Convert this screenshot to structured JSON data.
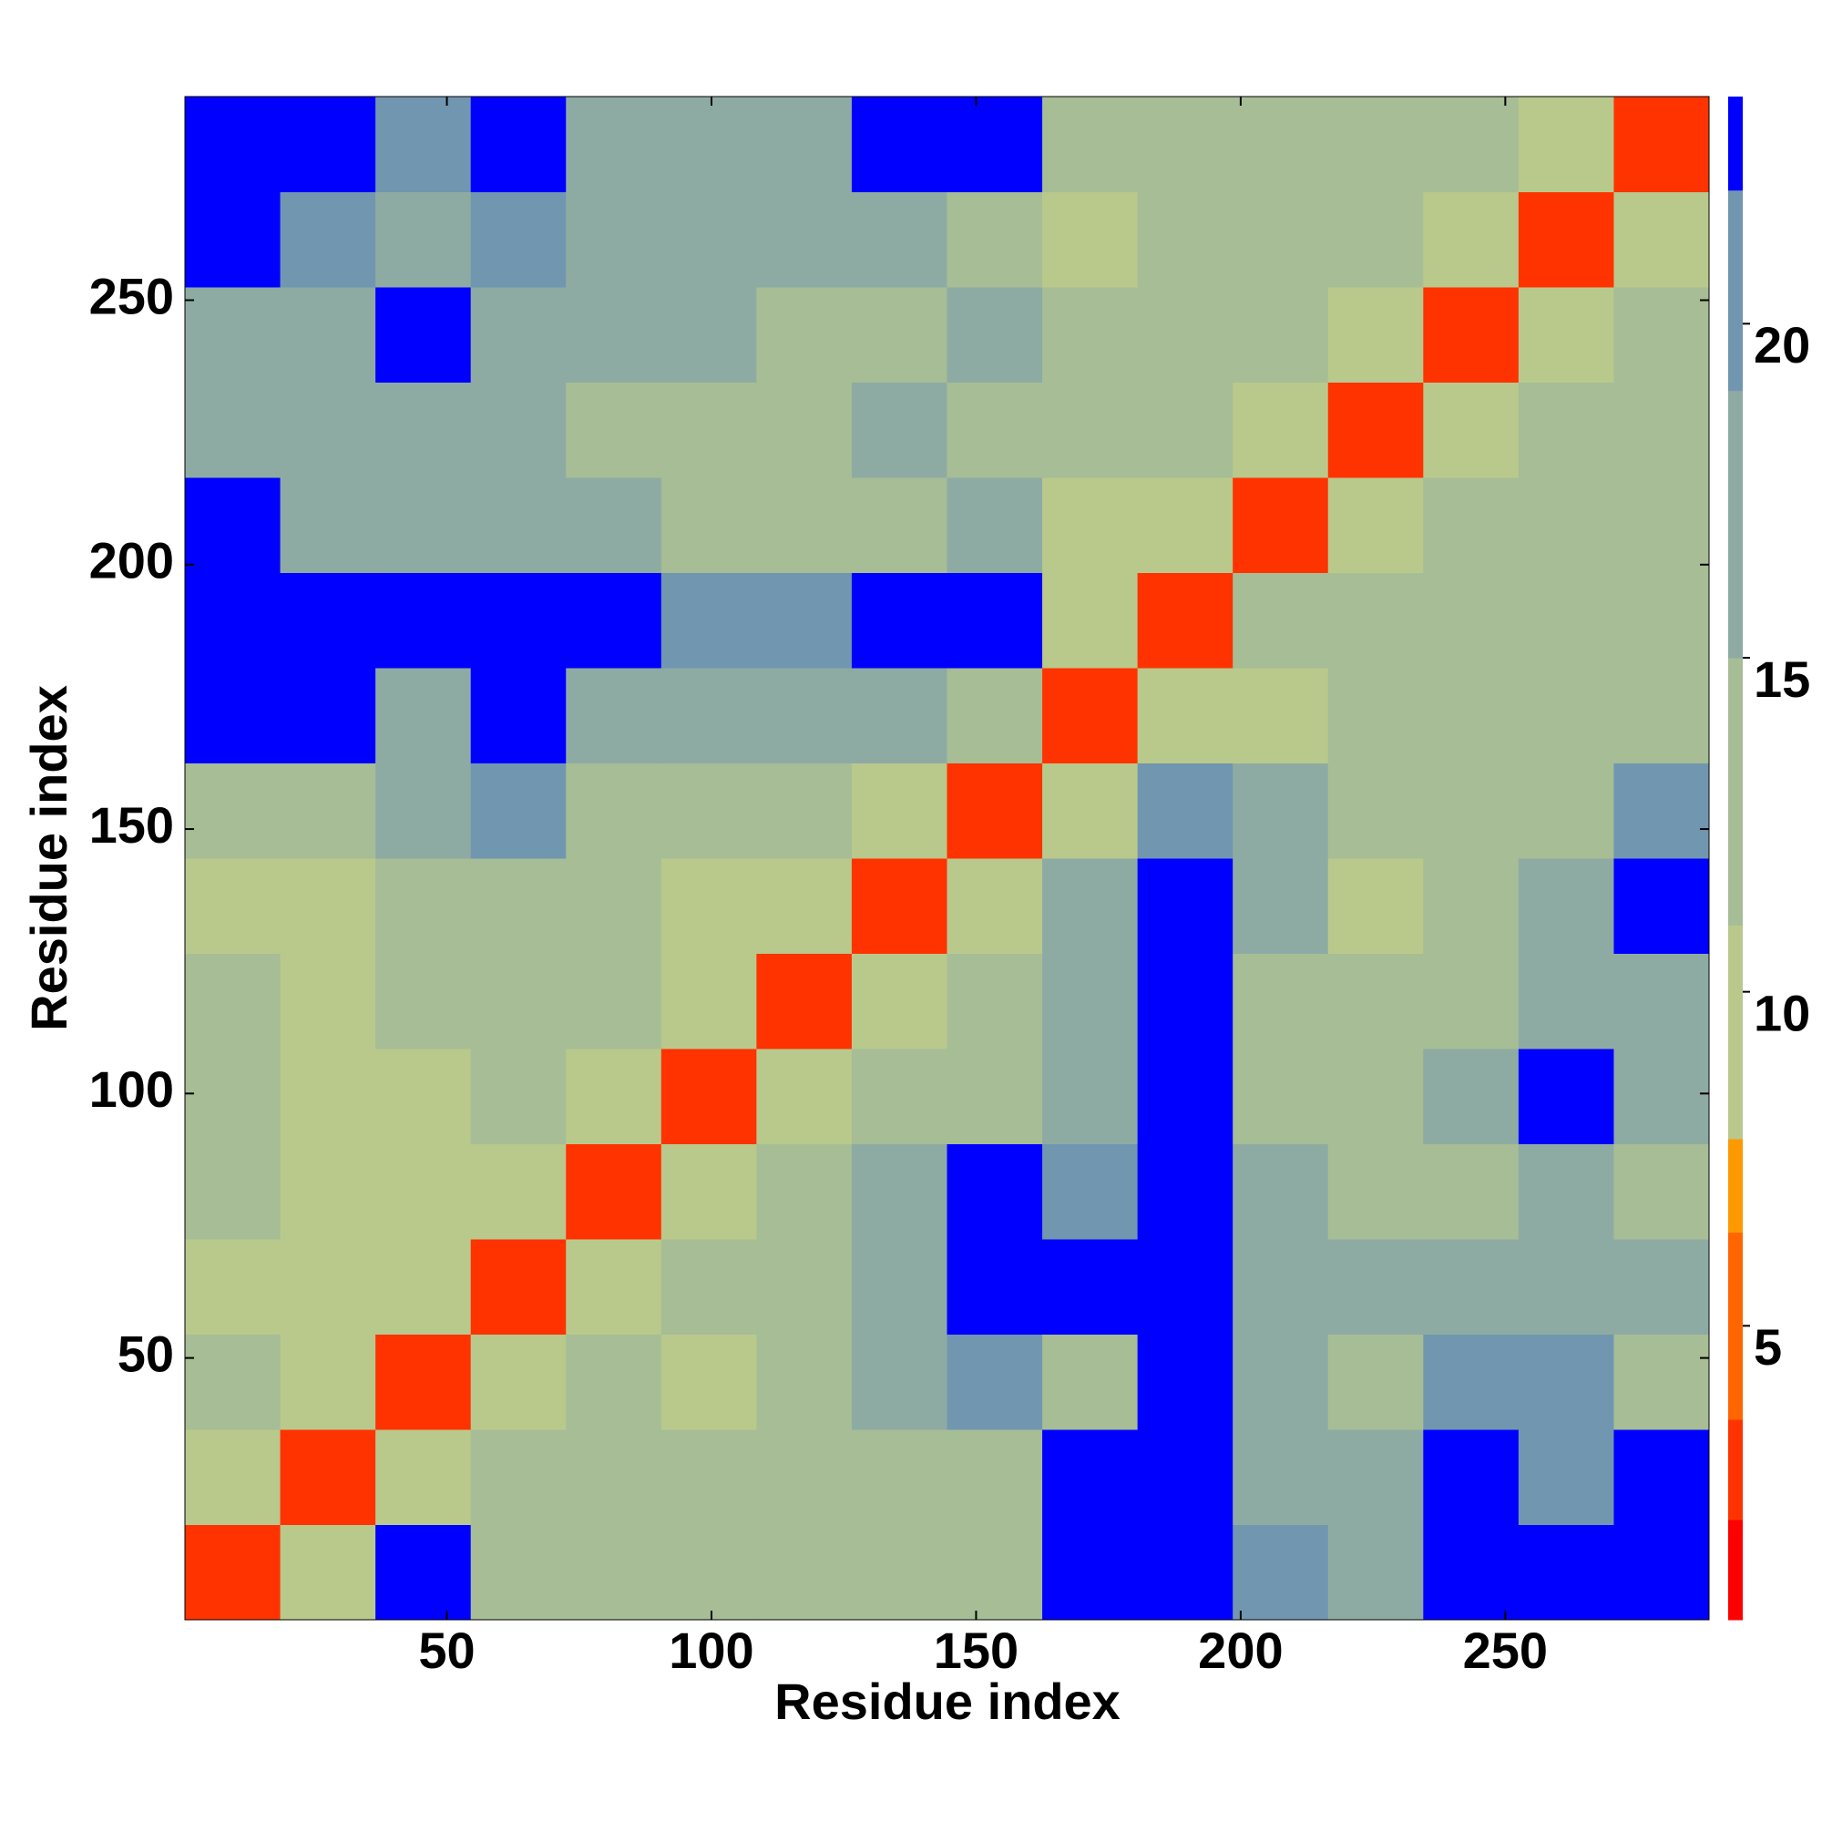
{
  "chart_data": {
    "type": "heatmap",
    "x_label": "Residue index",
    "y_label": "Residue index",
    "bins": [
      0.5,
      18.5,
      36.5,
      54.5,
      72.5,
      90.5,
      108.5,
      126.5,
      144.5,
      162.5,
      180.5,
      198.5,
      216.5,
      234.5,
      252.5,
      270.5,
      288.5
    ],
    "values": [
      [
        3,
        11,
        23,
        13,
        13,
        14,
        12,
        13,
        14,
        23,
        23,
        20,
        19,
        23,
        23,
        23
      ],
      [
        11,
        3,
        10,
        12,
        15,
        12,
        12,
        12,
        14,
        23,
        23,
        16,
        16,
        23,
        21,
        23
      ],
      [
        12,
        10,
        3,
        8,
        14,
        11,
        12,
        18,
        21,
        14,
        23,
        16,
        15,
        21,
        21,
        15
      ],
      [
        10,
        10,
        9,
        3,
        10,
        12,
        14,
        17,
        23,
        23,
        23,
        18,
        16,
        18,
        18,
        18
      ],
      [
        12,
        11,
        11,
        10,
        3,
        8,
        13,
        16,
        23,
        20,
        23,
        16,
        14,
        15,
        17,
        14
      ],
      [
        12,
        11,
        11,
        12,
        9,
        3,
        9,
        12,
        14,
        16,
        23,
        12,
        12,
        18,
        23,
        18
      ],
      [
        13,
        11,
        12,
        12,
        13,
        9,
        3,
        8,
        12,
        16,
        23,
        13,
        12,
        14,
        16,
        18
      ],
      [
        11,
        11,
        14,
        13,
        12,
        10,
        8,
        3,
        8,
        19,
        23,
        16,
        10,
        15,
        16,
        23
      ],
      [
        12,
        13,
        16,
        20,
        14,
        13,
        12,
        8,
        3,
        11,
        20,
        16,
        13,
        13,
        13,
        20
      ],
      [
        23,
        23,
        16,
        23,
        17,
        16,
        19,
        18,
        12,
        3,
        10,
        11,
        13,
        12,
        12,
        14
      ],
      [
        23,
        23,
        23,
        23,
        23,
        20,
        21,
        23,
        23,
        11,
        3,
        12,
        13,
        14,
        12,
        14
      ],
      [
        23,
        18,
        16,
        19,
        17,
        13,
        15,
        14,
        17,
        10,
        10,
        3,
        10,
        12,
        13,
        14
      ],
      [
        18,
        16,
        17,
        18,
        14,
        14,
        13,
        16,
        15,
        12,
        13,
        11,
        3,
        11,
        12,
        14
      ],
      [
        16,
        17,
        23,
        18,
        16,
        16,
        15,
        14,
        16,
        12,
        15,
        13,
        11,
        3,
        10,
        13
      ],
      [
        23,
        21,
        19,
        20,
        16,
        17,
        16,
        19,
        13,
        11,
        14,
        13,
        12,
        10,
        3,
        11
      ],
      [
        23,
        23,
        20,
        23,
        16,
        17,
        17,
        23,
        23,
        14,
        13,
        14,
        13,
        12,
        11,
        3
      ]
    ],
    "xlim": [
      0.5,
      288.5
    ],
    "ylim": [
      0.5,
      288.5
    ],
    "xticks": [
      50,
      100,
      150,
      200,
      250
    ],
    "yticks": [
      50,
      100,
      150,
      200,
      250
    ],
    "colorbar": {
      "lim": [
        0.6,
        23.4
      ],
      "ticks": [
        5,
        10,
        15,
        20
      ],
      "bounds": [
        0.6,
        2.1,
        3.6,
        6.4,
        7.8,
        11,
        15,
        19,
        22,
        23.4
      ],
      "colors": [
        "#ff0000",
        "#ff3300",
        "#ff6600",
        "#ff9900",
        "#b9c98c",
        "#a6bd95",
        "#8eaba3",
        "#7196b0",
        "#0000ff"
      ]
    }
  }
}
